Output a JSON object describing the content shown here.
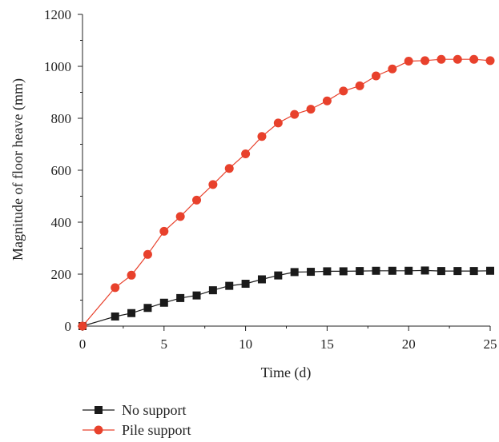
{
  "chart_data": {
    "type": "line",
    "xlabel": "Time (d)",
    "ylabel": "Magnitude of floor heave (mm)",
    "xlim": [
      0,
      25
    ],
    "ylim": [
      0,
      1200
    ],
    "xticks": [
      0,
      5,
      10,
      15,
      20,
      25
    ],
    "yticks": [
      0,
      200,
      400,
      600,
      800,
      1000,
      1200
    ],
    "grid": false,
    "legend_position": "bottom-left",
    "series": [
      {
        "name": "No support",
        "color": "#1a1a1a",
        "marker": "square",
        "points": [
          [
            0,
            0
          ],
          [
            2,
            37
          ],
          [
            3,
            50
          ],
          [
            4,
            70
          ],
          [
            5,
            90
          ],
          [
            6,
            108
          ],
          [
            7,
            118
          ],
          [
            8,
            138
          ],
          [
            9,
            155
          ],
          [
            10,
            163
          ],
          [
            11,
            180
          ],
          [
            12,
            195
          ],
          [
            13,
            208
          ],
          [
            14,
            209
          ],
          [
            15,
            211
          ],
          [
            16,
            211
          ],
          [
            17,
            212
          ],
          [
            18,
            213
          ],
          [
            19,
            213
          ],
          [
            20,
            213
          ],
          [
            21,
            214
          ],
          [
            22,
            212
          ],
          [
            23,
            212
          ],
          [
            24,
            212
          ],
          [
            25,
            213
          ]
        ]
      },
      {
        "name": "Pile support",
        "color": "#e8412c",
        "marker": "circle",
        "points": [
          [
            0,
            0
          ],
          [
            2,
            148
          ],
          [
            3,
            196
          ],
          [
            4,
            276
          ],
          [
            5,
            365
          ],
          [
            6,
            422
          ],
          [
            7,
            485
          ],
          [
            8,
            545
          ],
          [
            9,
            607
          ],
          [
            10,
            663
          ],
          [
            11,
            730
          ],
          [
            12,
            782
          ],
          [
            13,
            815
          ],
          [
            14,
            835
          ],
          [
            15,
            867
          ],
          [
            16,
            905
          ],
          [
            17,
            925
          ],
          [
            18,
            963
          ],
          [
            19,
            990
          ],
          [
            20,
            1020
          ],
          [
            21,
            1022
          ],
          [
            22,
            1027
          ],
          [
            23,
            1027
          ],
          [
            24,
            1027
          ],
          [
            25,
            1022
          ]
        ]
      }
    ]
  }
}
